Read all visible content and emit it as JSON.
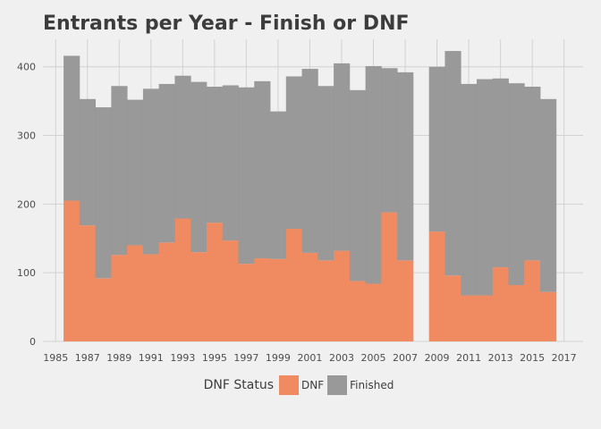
{
  "chart_data": {
    "type": "bar",
    "stacked": true,
    "title": "Entrants per Year - Finish or DNF",
    "xlabel": "",
    "ylabel": "",
    "xlim": [
      1984.2,
      2018.2
    ],
    "ylim": [
      0,
      440
    ],
    "x_ticks": [
      "1985",
      "1987",
      "1989",
      "1991",
      "1993",
      "1995",
      "1997",
      "1999",
      "2001",
      "2003",
      "2005",
      "2007",
      "2009",
      "2011",
      "2013",
      "2015",
      "2017"
    ],
    "y_ticks": [
      "0",
      "100",
      "200",
      "300",
      "400"
    ],
    "grid": true,
    "legend": {
      "title": "DNF Status",
      "placement": "bottom"
    },
    "years": [
      1986,
      1987,
      1988,
      1989,
      1990,
      1991,
      1992,
      1993,
      1994,
      1995,
      1996,
      1997,
      1998,
      1999,
      2000,
      2001,
      2002,
      2003,
      2004,
      2005,
      2006,
      2007,
      2009,
      2010,
      2011,
      2012,
      2013,
      2014,
      2015,
      2016
    ],
    "series": [
      {
        "name": "DNF",
        "color": "#f08a60",
        "values": [
          205,
          169,
          92,
          126,
          140,
          127,
          144,
          179,
          130,
          173,
          147,
          113,
          121,
          120,
          164,
          129,
          118,
          132,
          88,
          84,
          188,
          118,
          160,
          96,
          67,
          67,
          108,
          82,
          118,
          72
        ]
      },
      {
        "name": "Finished",
        "color": "#999999",
        "values": [
          211,
          184,
          249,
          246,
          212,
          241,
          231,
          208,
          248,
          198,
          226,
          257,
          258,
          215,
          222,
          268,
          254,
          273,
          278,
          317,
          210,
          274,
          240,
          327,
          308,
          315,
          275,
          294,
          253,
          281
        ]
      }
    ],
    "totals": [
      416,
      353,
      341,
      372,
      352,
      368,
      375,
      387,
      378,
      371,
      373,
      370,
      379,
      335,
      386,
      397,
      372,
      405,
      366,
      401,
      398,
      392,
      400,
      423,
      375,
      382,
      383,
      376,
      371,
      353
    ]
  }
}
